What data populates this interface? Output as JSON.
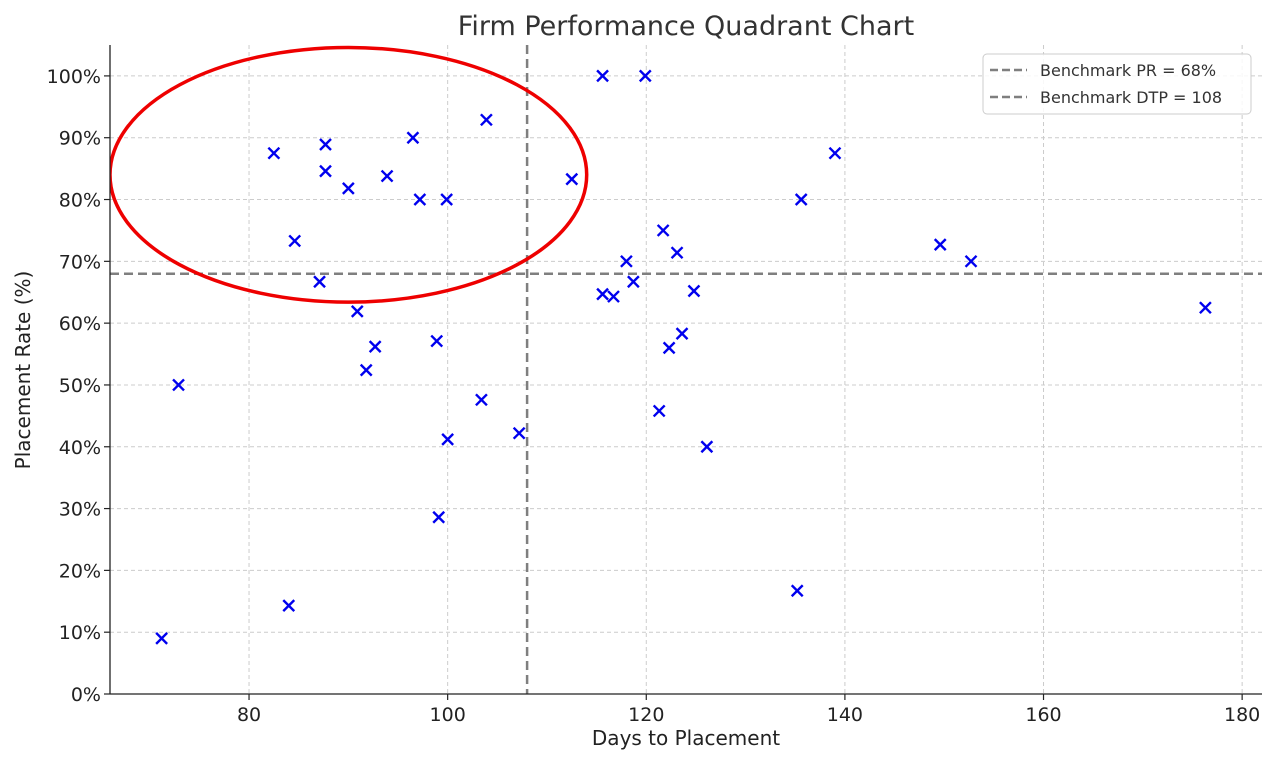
{
  "chart_data": {
    "type": "scatter",
    "title": "Firm Performance Quadrant Chart",
    "xlabel": "Days to Placement",
    "ylabel": "Placement Rate (%)",
    "xlim": [
      66,
      182
    ],
    "ylim": [
      0,
      105
    ],
    "x_ticks": [
      80,
      100,
      120,
      140,
      160,
      180
    ],
    "x_tick_labels": [
      "80",
      "100",
      "120",
      "140",
      "160",
      "180"
    ],
    "y_ticks": [
      0,
      10,
      20,
      30,
      40,
      50,
      60,
      70,
      80,
      90,
      100
    ],
    "y_tick_labels": [
      "0%",
      "10%",
      "20%",
      "30%",
      "40%",
      "50%",
      "60%",
      "70%",
      "80%",
      "90%",
      "100%"
    ],
    "grid": true,
    "legend_position": "top-right",
    "marker_color": "#0000ee",
    "marker": "x",
    "points": [
      [
        71.2,
        9
      ],
      [
        72.9,
        50
      ],
      [
        82.5,
        87.5
      ],
      [
        84.0,
        14.3
      ],
      [
        84.6,
        73.3
      ],
      [
        87.1,
        66.7
      ],
      [
        87.7,
        88.9
      ],
      [
        87.7,
        84.6
      ],
      [
        90.0,
        81.8
      ],
      [
        90.9,
        61.9
      ],
      [
        91.8,
        52.4
      ],
      [
        92.7,
        56.2
      ],
      [
        93.9,
        83.8
      ],
      [
        96.5,
        90.0
      ],
      [
        97.2,
        80.0
      ],
      [
        98.9,
        57.1
      ],
      [
        99.1,
        28.6
      ],
      [
        99.9,
        80.0
      ],
      [
        100.0,
        41.2
      ],
      [
        103.4,
        47.6
      ],
      [
        103.9,
        92.9
      ],
      [
        107.2,
        42.2
      ],
      [
        112.5,
        83.3
      ],
      [
        115.6,
        100.0
      ],
      [
        115.6,
        64.7
      ],
      [
        116.7,
        64.3
      ],
      [
        118.0,
        70.0
      ],
      [
        118.7,
        66.7
      ],
      [
        119.9,
        100.0
      ],
      [
        121.3,
        45.8
      ],
      [
        121.7,
        75.0
      ],
      [
        122.3,
        56.0
      ],
      [
        123.1,
        71.4
      ],
      [
        123.6,
        58.3
      ],
      [
        124.8,
        65.2
      ],
      [
        126.1,
        40.0
      ],
      [
        135.2,
        16.7
      ],
      [
        135.6,
        80.0
      ],
      [
        139.0,
        87.5
      ],
      [
        149.6,
        72.7
      ],
      [
        152.7,
        70.0
      ],
      [
        176.3,
        62.5
      ]
    ],
    "benchmarks": [
      {
        "name": "Benchmark PR = 68%",
        "orientation": "horizontal",
        "value": 68,
        "color": "#7f7f7f"
      },
      {
        "name": "Benchmark DTP = 108",
        "orientation": "vertical",
        "value": 108,
        "color": "#7f7f7f"
      }
    ],
    "annotations": [
      {
        "type": "ellipse",
        "color": "#ee0000",
        "cx": 90,
        "cy": 84,
        "rx": 24,
        "ry": 20.6
      }
    ]
  }
}
